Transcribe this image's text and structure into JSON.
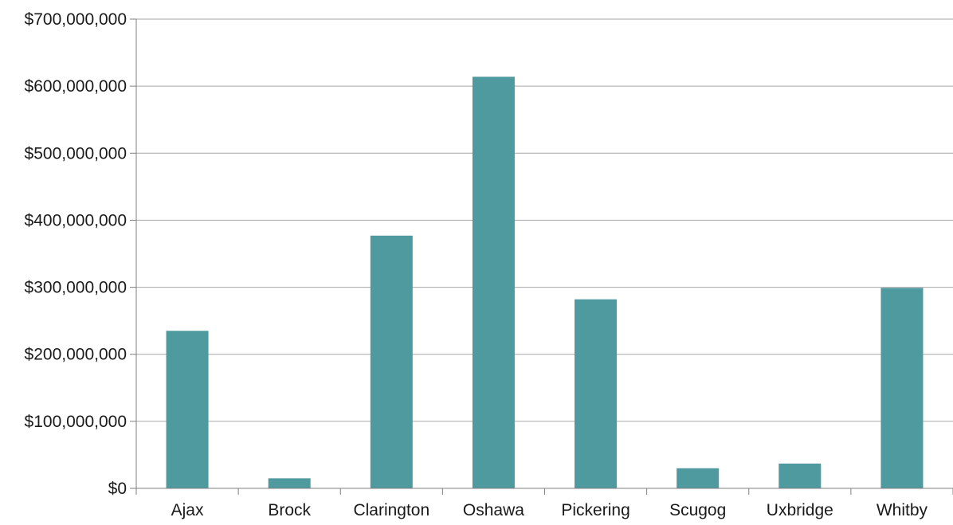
{
  "chart_data": {
    "type": "bar",
    "title": "",
    "xlabel": "",
    "ylabel": "",
    "categories": [
      "Ajax",
      "Brock",
      "Clarington",
      "Oshawa",
      "Pickering",
      "Scugog",
      "Uxbridge",
      "Whitby"
    ],
    "values": [
      235000000,
      15000000,
      377000000,
      614000000,
      282000000,
      30000000,
      37000000,
      299000000
    ],
    "ylim": [
      0,
      700000000
    ],
    "y_ticks": [
      0,
      100000000,
      200000000,
      300000000,
      400000000,
      500000000,
      600000000,
      700000000
    ],
    "y_tick_labels": [
      "$0",
      "$100,000,000",
      "$200,000,000",
      "$300,000,000",
      "$400,000,000",
      "$500,000,000",
      "$600,000,000",
      "$700,000,000"
    ],
    "grid": true,
    "legend": "none",
    "bar_color": "#4e9a9e",
    "grid_color": "#a6a6a6",
    "axis_color": "#7f7f7f"
  }
}
